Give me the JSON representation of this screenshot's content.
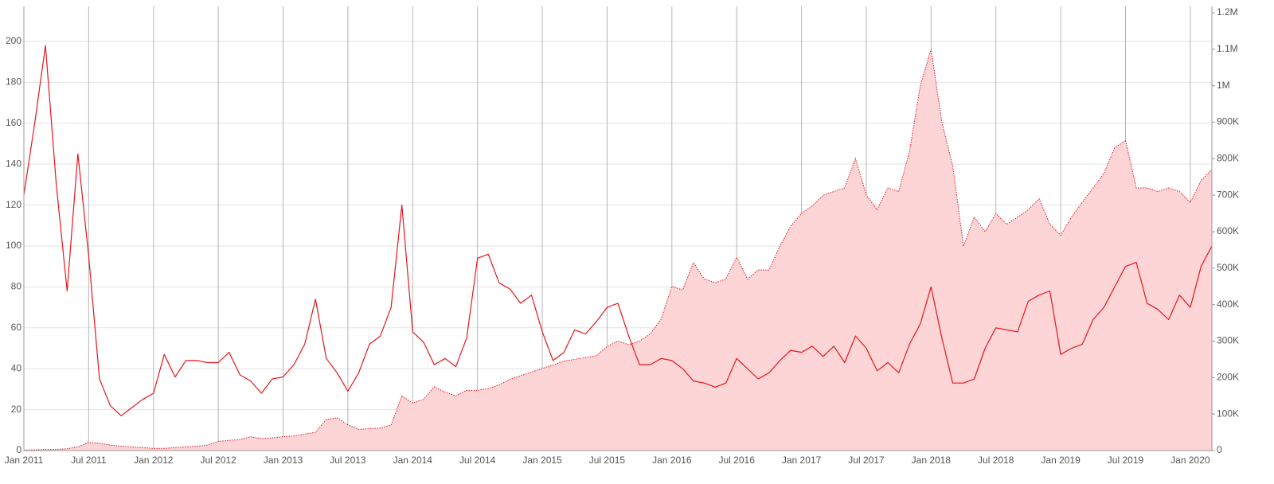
{
  "chart_data": {
    "type": "line",
    "x": [
      "2011-01",
      "2011-02",
      "2011-03",
      "2011-04",
      "2011-05",
      "2011-06",
      "2011-07",
      "2011-08",
      "2011-09",
      "2011-10",
      "2011-11",
      "2011-12",
      "2012-01",
      "2012-02",
      "2012-03",
      "2012-04",
      "2012-05",
      "2012-06",
      "2012-07",
      "2012-08",
      "2012-09",
      "2012-10",
      "2012-11",
      "2012-12",
      "2013-01",
      "2013-02",
      "2013-03",
      "2013-04",
      "2013-05",
      "2013-06",
      "2013-07",
      "2013-08",
      "2013-09",
      "2013-10",
      "2013-11",
      "2013-12",
      "2014-01",
      "2014-02",
      "2014-03",
      "2014-04",
      "2014-05",
      "2014-06",
      "2014-07",
      "2014-08",
      "2014-09",
      "2014-10",
      "2014-11",
      "2014-12",
      "2015-01",
      "2015-02",
      "2015-03",
      "2015-04",
      "2015-05",
      "2015-06",
      "2015-07",
      "2015-08",
      "2015-09",
      "2015-10",
      "2015-11",
      "2015-12",
      "2016-01",
      "2016-02",
      "2016-03",
      "2016-04",
      "2016-05",
      "2016-06",
      "2016-07",
      "2016-08",
      "2016-09",
      "2016-10",
      "2016-11",
      "2016-12",
      "2017-01",
      "2017-02",
      "2017-03",
      "2017-04",
      "2017-05",
      "2017-06",
      "2017-07",
      "2017-08",
      "2017-09",
      "2017-10",
      "2017-11",
      "2017-12",
      "2018-01",
      "2018-02",
      "2018-03",
      "2018-04",
      "2018-05",
      "2018-06",
      "2018-07",
      "2018-08",
      "2018-09",
      "2018-10",
      "2018-11",
      "2018-12",
      "2019-01",
      "2019-02",
      "2019-03",
      "2019-04",
      "2019-05",
      "2019-06",
      "2019-07",
      "2019-08",
      "2019-09",
      "2019-10",
      "2019-11",
      "2019-12",
      "2020-01",
      "2020-02",
      "2020-03"
    ],
    "series": [
      {
        "type": "area",
        "axis": "y2",
        "color": "#e8141c",
        "fill": "#fdd5d7",
        "values": [
          1000,
          2000,
          3000,
          3000,
          5000,
          10000,
          22000,
          20000,
          15000,
          12000,
          10000,
          8000,
          6000,
          6000,
          8000,
          10000,
          12000,
          15000,
          25000,
          28000,
          30000,
          38000,
          33000,
          35000,
          38000,
          40000,
          45000,
          50000,
          85000,
          90000,
          70000,
          58000,
          60000,
          62000,
          70000,
          150000,
          130000,
          140000,
          175000,
          160000,
          150000,
          165000,
          165000,
          170000,
          180000,
          195000,
          205000,
          215000,
          225000,
          235000,
          245000,
          250000,
          255000,
          260000,
          285000,
          300000,
          290000,
          300000,
          320000,
          360000,
          450000,
          440000,
          515000,
          470000,
          460000,
          470000,
          530000,
          470000,
          495000,
          495000,
          560000,
          615000,
          650000,
          670000,
          700000,
          710000,
          720000,
          800000,
          700000,
          660000,
          720000,
          710000,
          820000,
          1000000,
          1100000,
          900000,
          780000,
          560000,
          640000,
          600000,
          650000,
          620000,
          640000,
          660000,
          690000,
          620000,
          590000,
          640000,
          680000,
          720000,
          760000,
          830000,
          850000,
          720000,
          720000,
          710000,
          720000,
          710000,
          680000,
          740000,
          770000
        ]
      },
      {
        "type": "line",
        "axis": "y",
        "color": "#e8141c",
        "values": [
          125,
          160,
          198,
          130,
          78,
          145,
          95,
          35,
          22,
          17,
          21,
          25,
          28,
          47,
          36,
          44,
          44,
          43,
          43,
          48,
          37,
          34,
          28,
          35,
          36,
          42,
          52,
          74,
          45,
          38,
          29,
          38,
          52,
          56,
          70,
          120,
          58,
          53,
          42,
          45,
          41,
          55,
          94,
          96,
          82,
          79,
          72,
          76,
          58,
          44,
          48,
          59,
          57,
          63,
          70,
          72,
          56,
          42,
          42,
          45,
          44,
          40,
          34,
          33,
          31,
          33,
          45,
          40,
          35,
          38,
          44,
          49,
          48,
          51,
          46,
          51,
          43,
          56,
          50,
          39,
          43,
          38,
          52,
          62,
          80,
          55,
          33,
          33,
          35,
          50,
          60,
          59,
          58,
          73,
          76,
          78,
          47,
          50,
          52,
          64,
          70,
          80,
          90,
          92,
          72,
          69,
          64,
          76,
          70,
          90,
          100
        ]
      }
    ],
    "xlim": [
      "2011-01",
      "2020-03"
    ],
    "xticks": [
      {
        "value": "2011-01",
        "label": "Jan 2011"
      },
      {
        "value": "2011-07",
        "label": "Jul 2011"
      },
      {
        "value": "2012-01",
        "label": "Jan 2012"
      },
      {
        "value": "2012-07",
        "label": "Jul 2012"
      },
      {
        "value": "2013-01",
        "label": "Jan 2013"
      },
      {
        "value": "2013-07",
        "label": "Jul 2013"
      },
      {
        "value": "2014-01",
        "label": "Jan 2014"
      },
      {
        "value": "2014-07",
        "label": "Jul 2014"
      },
      {
        "value": "2015-01",
        "label": "Jan 2015"
      },
      {
        "value": "2015-07",
        "label": "Jul 2015"
      },
      {
        "value": "2016-01",
        "label": "Jan 2016"
      },
      {
        "value": "2016-07",
        "label": "Jul 2016"
      },
      {
        "value": "2017-01",
        "label": "Jan 2017"
      },
      {
        "value": "2017-07",
        "label": "Jul 2017"
      },
      {
        "value": "2018-01",
        "label": "Jan 2018"
      },
      {
        "value": "2018-07",
        "label": "Jul 2018"
      },
      {
        "value": "2019-01",
        "label": "Jan 2019"
      },
      {
        "value": "2019-07",
        "label": "Jul 2019"
      },
      {
        "value": "2020-01",
        "label": "Jan 2020"
      }
    ],
    "ylim": [
      0,
      214
    ],
    "yticks": [
      0,
      20,
      40,
      60,
      80,
      100,
      120,
      140,
      160,
      180,
      200
    ],
    "y2lim": [
      0,
      1200000
    ],
    "y2ticks": [
      0,
      {
        "value": 100000,
        "label": "100K"
      },
      {
        "value": 200000,
        "label": "200K"
      },
      {
        "value": 300000,
        "label": "300K"
      },
      {
        "value": 400000,
        "label": "400K"
      },
      {
        "value": 500000,
        "label": "500K"
      },
      {
        "value": 600000,
        "label": "600K"
      },
      {
        "value": 700000,
        "label": "700K"
      },
      {
        "value": 800000,
        "label": "800K"
      },
      {
        "value": 900000,
        "label": "900K"
      },
      {
        "value": 1000000,
        "label": "1M"
      },
      {
        "value": 1100000,
        "label": "1.1M"
      },
      {
        "value": 1200000,
        "label": "1.2M"
      }
    ],
    "grid": true
  }
}
